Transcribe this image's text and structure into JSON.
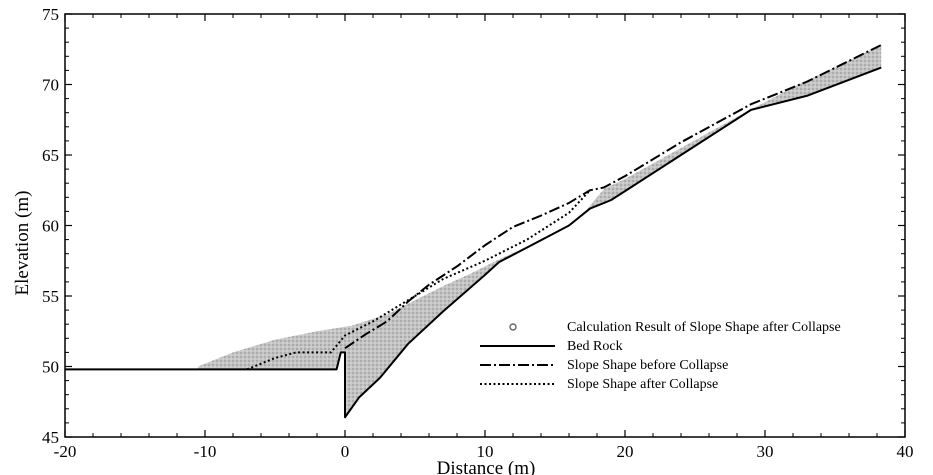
{
  "chart_data": {
    "type": "line",
    "title": "",
    "xlabel": "Distance (m)",
    "ylabel": "Elevation (m)",
    "xlim": [
      -20,
      40
    ],
    "ylim": [
      45,
      75
    ],
    "xticks": [
      -20,
      -10,
      0,
      10,
      20,
      30,
      40
    ],
    "yticks": [
      45,
      50,
      55,
      60,
      65,
      70,
      75
    ],
    "grid": false,
    "legend_position": "lower-right",
    "legend": [
      "Calculation Result of Slope Shape after Collapse",
      "Bed Rock",
      "Slope Shape before Collapse",
      "Slope Shape after Collapse"
    ],
    "series": [
      {
        "name": "Calculation Result of Slope Shape after Collapse",
        "style": "scatter-fill",
        "color": "#b8b8b8",
        "x": [
          -10.5,
          -8,
          -5,
          -2,
          0.5,
          3,
          5,
          7,
          9,
          11,
          13,
          15,
          17,
          18.5,
          20,
          24,
          28,
          32,
          36,
          38.3
        ],
        "y": [
          50.0,
          51.0,
          51.9,
          52.5,
          52.9,
          53.7,
          54.7,
          55.7,
          56.6,
          57.6,
          58.5,
          59.4,
          60.8,
          62.6,
          63.3,
          65.5,
          67.7,
          69.8,
          71.7,
          72.8
        ]
      },
      {
        "name": "Bed Rock",
        "style": "solid",
        "color": "#000000",
        "x": [
          -20,
          -0.6,
          -0.3,
          0,
          0,
          1,
          2.5,
          4.5,
          7,
          10,
          11,
          13.5,
          16,
          17.5,
          19,
          24,
          29,
          33,
          38.3
        ],
        "y": [
          49.8,
          49.8,
          51.0,
          51.0,
          46.4,
          47.8,
          49.2,
          51.6,
          53.9,
          56.5,
          57.4,
          58.7,
          60.0,
          61.2,
          61.8,
          65.0,
          68.2,
          69.2,
          71.2
        ]
      },
      {
        "name": "Slope Shape before Collapse",
        "style": "dashdot",
        "color": "#000000",
        "x": [
          0,
          1.5,
          3,
          4.5,
          6,
          8,
          10,
          12,
          14,
          16,
          17.5,
          18.5,
          20,
          24,
          29,
          33,
          38.3
        ],
        "y": [
          51.3,
          52.3,
          53.2,
          54.6,
          55.8,
          57.1,
          58.6,
          59.9,
          60.7,
          61.6,
          62.5,
          62.7,
          63.5,
          65.9,
          68.6,
          70.2,
          72.8
        ]
      },
      {
        "name": "Slope Shape after Collapse",
        "style": "dotted",
        "color": "#000000",
        "x": [
          -7,
          -5,
          -3.5,
          -1,
          0,
          2,
          5,
          7,
          10,
          13,
          16,
          17.5
        ],
        "y": [
          49.8,
          50.6,
          51.0,
          51.0,
          52.2,
          53.2,
          55.0,
          56.2,
          57.5,
          59.0,
          60.9,
          62.5
        ]
      }
    ]
  }
}
